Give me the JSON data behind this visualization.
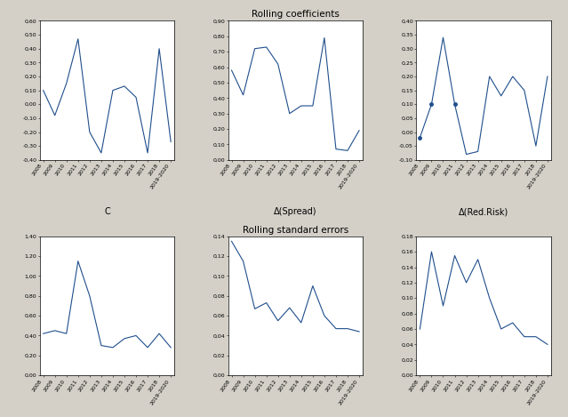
{
  "top_title": "Rolling coefficients",
  "bottom_title": "Rolling standard errors",
  "x_labels": [
    "2008",
    "2009",
    "2010",
    "2011",
    "2012",
    "2013",
    "2014",
    "2015",
    "2016",
    "2017",
    "2018",
    "2019-2020"
  ],
  "x_values": [
    0,
    1,
    2,
    3,
    4,
    5,
    6,
    7,
    8,
    9,
    10,
    11
  ],
  "coef_C": [
    0.1,
    -0.08,
    0.15,
    0.47,
    -0.2,
    -0.35,
    0.1,
    0.13,
    0.05,
    -0.35,
    0.4,
    -0.27
  ],
  "coef_C_ylim": [
    -0.4,
    0.6
  ],
  "coef_C_yticks": [
    -0.4,
    -0.3,
    -0.2,
    -0.1,
    0.0,
    0.1,
    0.2,
    0.3,
    0.4,
    0.5,
    0.6
  ],
  "coef_spread": [
    0.58,
    0.42,
    0.72,
    0.73,
    0.62,
    0.3,
    0.35,
    0.35,
    0.79,
    0.07,
    0.06,
    0.19
  ],
  "coef_spread_ylim": [
    0.0,
    0.9
  ],
  "coef_spread_yticks": [
    0.0,
    0.1,
    0.2,
    0.3,
    0.4,
    0.5,
    0.6,
    0.7,
    0.8,
    0.9
  ],
  "coef_redrisk": [
    -0.02,
    0.1,
    0.34,
    0.1,
    -0.08,
    -0.07,
    0.2,
    0.13,
    0.2,
    0.15,
    -0.05,
    0.2
  ],
  "coef_redrisk_ylim": [
    -0.1,
    0.4
  ],
  "coef_redrisk_yticks": [
    -0.1,
    -0.05,
    0.0,
    0.05,
    0.1,
    0.15,
    0.2,
    0.25,
    0.3,
    0.35,
    0.4
  ],
  "coef_redrisk_markers": [
    0,
    1,
    3
  ],
  "se_C": [
    0.42,
    0.45,
    0.42,
    1.15,
    0.8,
    0.3,
    0.28,
    0.37,
    0.4,
    0.28,
    0.42,
    0.28
  ],
  "se_C_ylim": [
    0.0,
    1.4
  ],
  "se_C_yticks": [
    0.0,
    0.2,
    0.4,
    0.6,
    0.8,
    1.0,
    1.2,
    1.4
  ],
  "se_spread": [
    0.135,
    0.115,
    0.067,
    0.073,
    0.055,
    0.068,
    0.053,
    0.09,
    0.06,
    0.047,
    0.047,
    0.044
  ],
  "se_spread_ylim": [
    0.0,
    0.14
  ],
  "se_spread_yticks": [
    0.0,
    0.02,
    0.04,
    0.06,
    0.08,
    0.1,
    0.12,
    0.14
  ],
  "se_redrisk": [
    0.06,
    0.16,
    0.09,
    0.155,
    0.12,
    0.15,
    0.1,
    0.06,
    0.068,
    0.05,
    0.05,
    0.04
  ],
  "se_redrisk_ylim": [
    0.0,
    0.18
  ],
  "se_redrisk_yticks": [
    0.0,
    0.02,
    0.04,
    0.06,
    0.08,
    0.1,
    0.12,
    0.14,
    0.16,
    0.18
  ],
  "xlabel_C": "C",
  "xlabel_spread": "Δ(Spread)",
  "xlabel_redrisk": "Δ(Red.Risk)",
  "line_color": "#1f4e8c",
  "marker_color": "#1f4e8c",
  "bg_color": "#d4d0c8",
  "plot_bg": "#ffffff",
  "title_fontsize": 7.5,
  "tick_fontsize": 4.5,
  "label_fontsize": 7
}
